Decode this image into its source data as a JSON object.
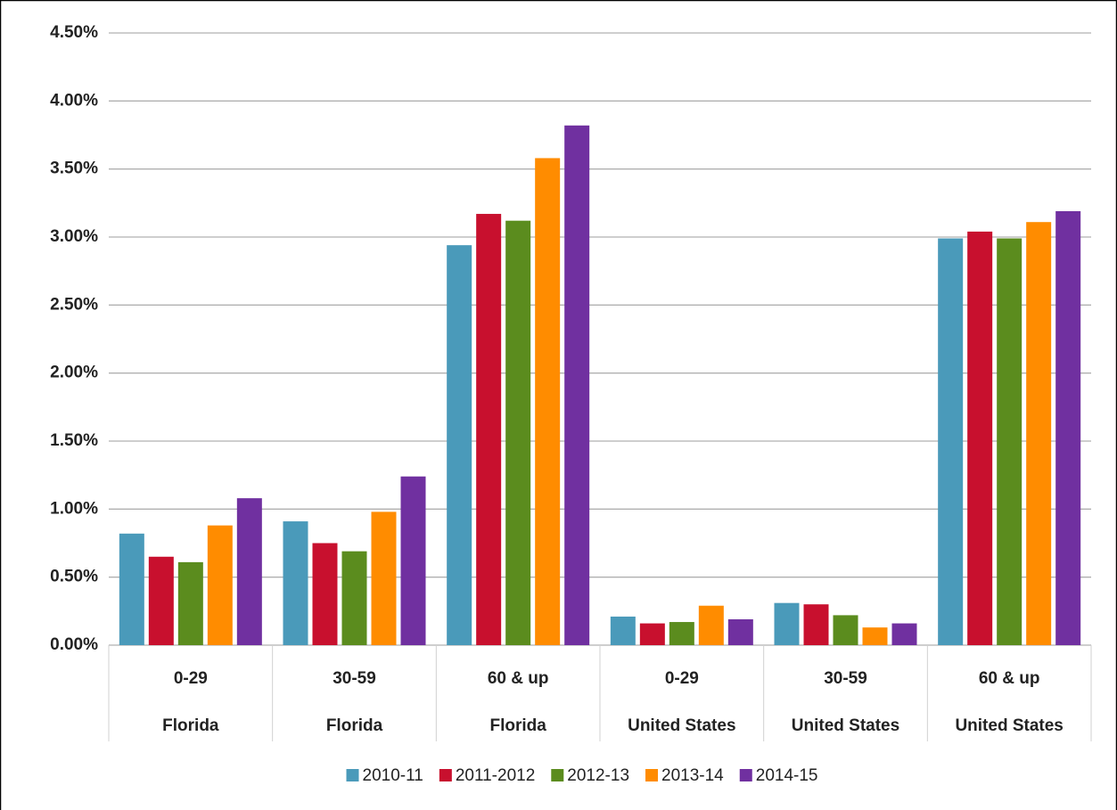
{
  "chart_data": {
    "type": "bar",
    "categories": [
      "0-29",
      "30-59",
      "60 & up",
      "0-29",
      "30-59",
      "60 & up"
    ],
    "category_groups": [
      "Florida",
      "Florida",
      "Florida",
      "United States",
      "United States",
      "United States"
    ],
    "series": [
      {
        "name": "2010-11",
        "color": "#4a9aba",
        "values": [
          0.82,
          0.91,
          2.94,
          0.21,
          0.31,
          2.99
        ]
      },
      {
        "name": "2011-2012",
        "color": "#c8102e",
        "values": [
          0.65,
          0.75,
          3.17,
          0.16,
          0.3,
          3.04
        ]
      },
      {
        "name": "2012-13",
        "color": "#5b8c1e",
        "values": [
          0.61,
          0.69,
          3.12,
          0.17,
          0.22,
          2.99
        ]
      },
      {
        "name": "2013-14",
        "color": "#ff8c00",
        "values": [
          0.88,
          0.98,
          3.58,
          0.29,
          0.13,
          3.11
        ]
      },
      {
        "name": "2014-15",
        "color": "#7030a0",
        "values": [
          1.08,
          1.24,
          3.82,
          0.19,
          0.16,
          3.19
        ]
      }
    ],
    "ylim": [
      0,
      4.5
    ],
    "yticks": [
      {
        "value": 0,
        "label": "0.00%"
      },
      {
        "value": 0.5,
        "label": "0.50%"
      },
      {
        "value": 1,
        "label": "1.00%"
      },
      {
        "value": 1.5,
        "label": "1.50%"
      },
      {
        "value": 2,
        "label": "2.00%"
      },
      {
        "value": 2.5,
        "label": "2.50%"
      },
      {
        "value": 3,
        "label": "3.00%"
      },
      {
        "value": 3.5,
        "label": "3.50%"
      },
      {
        "value": 4,
        "label": "4.00%"
      },
      {
        "value": 4.5,
        "label": "4.50%"
      }
    ],
    "grid": true,
    "legend": "bottom"
  }
}
